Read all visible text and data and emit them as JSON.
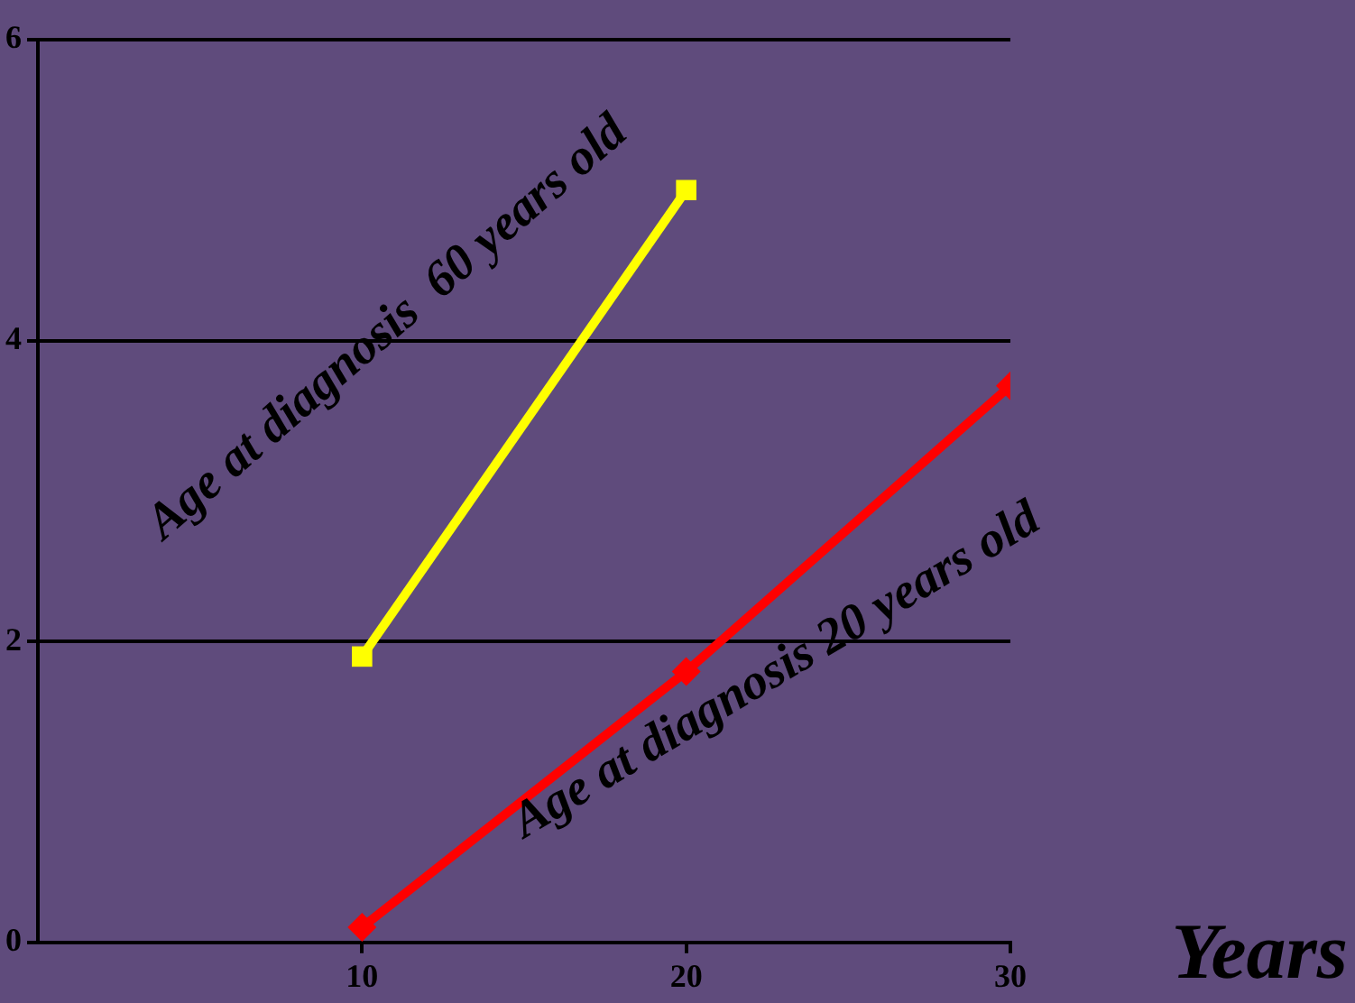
{
  "chart_data": {
    "type": "line",
    "xlabel": "Years",
    "xlim": [
      0,
      30
    ],
    "xticks": [
      10,
      20,
      30
    ],
    "ylim": [
      0,
      6
    ],
    "yticks": [
      0,
      2,
      4,
      6
    ],
    "grid": "y",
    "legend": false,
    "line_style": "solid",
    "series": [
      {
        "name": "Age at diagnosis  60 years old",
        "color": "#ffff00",
        "marker": "square",
        "x": [
          10,
          20
        ],
        "values": [
          1.9,
          5.0
        ]
      },
      {
        "name": "Age at diagnosis 20 years old",
        "color": "#ff0000",
        "marker": "diamond",
        "x": [
          10,
          20,
          30
        ],
        "values": [
          0.1,
          1.8,
          3.7
        ]
      }
    ]
  }
}
